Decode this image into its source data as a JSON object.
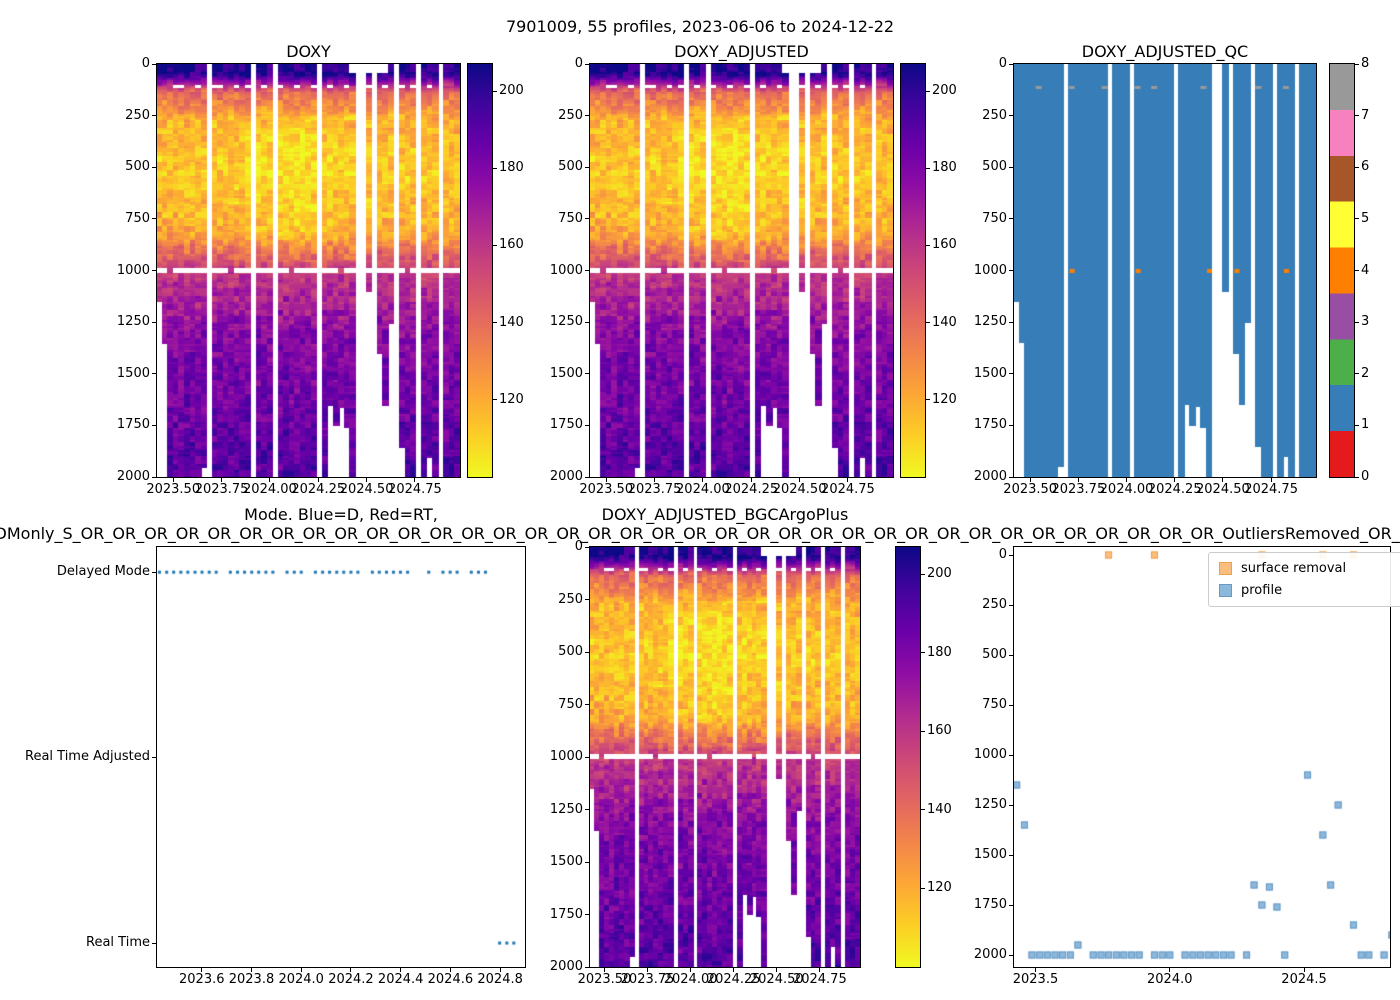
{
  "figure": {
    "suptitle": "7901009, 55 profiles, 2023-06-06 to 2024-12-22",
    "background": "#ffffff"
  },
  "titles": {
    "doxy": "DOXY",
    "doxy_adjusted": "DOXY_ADJUSTED",
    "doxy_adjusted_qc": "DOXY_ADJUSTED_QC",
    "mode_line1": "Mode. Blue=D, Red=RT,",
    "mode_line2": "Processing: F_DMonly_S_OR_OR_OR_OR_OR_OR_OR_OR_OR_OR_OR_OR_OR_OR_OR_OR_OR_OR_OR_OR_OR_OR_OR_OR_OR_OR_OR_OR_OR_OR_OR_OR_OR_OR_OR_OR_OutliersRemoved_OR_OR_OR_OR_OR",
    "bgc": "DOXY_ADJUSTED_BGCArgoPlus"
  },
  "legend": {
    "surface_removal": "surface removal",
    "profile": "profile"
  },
  "depth_ticks": [
    0,
    250,
    500,
    750,
    1000,
    1250,
    1500,
    1750,
    2000
  ],
  "colors": {
    "plasma": [
      "#0d0887",
      "#41049d",
      "#6a00a8",
      "#8f0da4",
      "#b12a90",
      "#cc4778",
      "#e16462",
      "#f2844b",
      "#fca636",
      "#fcce25",
      "#f0f921"
    ],
    "qc_palette": [
      "#e41a1c",
      "#377eb8",
      "#4daf4a",
      "#984ea3",
      "#ff7f00",
      "#ffff33",
      "#a65628",
      "#f781bf",
      "#999999"
    ],
    "mode_dot": "#1f77b4",
    "marker_profile_fill": "#8cb8dc",
    "marker_profile_edge": "#6699c4",
    "marker_surface_fill": "#fcbe7e",
    "marker_surface_edge": "#eda14f"
  },
  "chart_data": [
    {
      "id": "doxy",
      "type": "heatmap",
      "title": "DOXY",
      "x_range": [
        2023.416,
        2024.983
      ],
      "y_range": [
        0,
        2000
      ],
      "x_tick_values": [
        2023.5,
        2023.75,
        2024.0,
        2024.25,
        2024.5,
        2024.75
      ],
      "x_ticks": [
        "2023.50",
        "2023.75",
        "2024.00",
        "2024.25",
        "2024.50",
        "2024.75"
      ],
      "column_half_width": 0.01426,
      "colorbar": {
        "vmin": 100,
        "vmax": 207,
        "ticks": [
          200,
          180,
          160,
          140,
          120
        ]
      },
      "value_bands": [
        [
          0,
          203
        ],
        [
          45,
          201
        ],
        [
          130,
          142
        ],
        [
          260,
          119
        ],
        [
          520,
          112
        ],
        [
          800,
          121
        ],
        [
          1000,
          157
        ],
        [
          1300,
          178
        ],
        [
          2000,
          191
        ]
      ],
      "noise_amp": 9,
      "mask_1000m_skip": [
        2,
        13,
        24,
        33,
        45
      ],
      "surface_mask_profiles": [
        3,
        4,
        7,
        10,
        11,
        14,
        16,
        19,
        22,
        25,
        28,
        31,
        34,
        38,
        41,
        44,
        46,
        49
      ],
      "top_gap_profiles": [
        35,
        38,
        40,
        41
      ]
    },
    {
      "id": "doxy_adjusted",
      "type": "heatmap",
      "title": "DOXY_ADJUSTED",
      "same_data_as": "doxy"
    },
    {
      "id": "doxy_adjusted_qc",
      "type": "heatmap",
      "title": "DOXY_ADJUSTED_QC",
      "x_range": [
        2023.416,
        2024.983
      ],
      "y_range": [
        0,
        2000
      ],
      "x_tick_values": [
        2023.5,
        2023.75,
        2024.0,
        2024.25,
        2024.5,
        2024.75
      ],
      "x_ticks": [
        "2023.50",
        "2023.75",
        "2024.00",
        "2024.25",
        "2024.50",
        "2024.75"
      ],
      "column_half_width": 0.01426,
      "colorbar": {
        "ticks": [
          0,
          1,
          2,
          3,
          4,
          5,
          6,
          7,
          8
        ]
      },
      "dominant_flag": 1,
      "flag4_profiles": [
        10,
        22,
        35,
        40,
        49
      ],
      "flag4_depth": 1000,
      "flag8_profiles": [
        4,
        10,
        16,
        22,
        25,
        34,
        44,
        49
      ],
      "flag8_depth": 110
    },
    {
      "id": "mode",
      "type": "scatter",
      "title": "Mode. Blue=D, Red=RT,",
      "categories": [
        "Delayed Mode",
        "Real Time Adjusted",
        "Real Time"
      ],
      "row_fractions": [
        0.06,
        0.5,
        0.943
      ],
      "x_range": [
        2023.42,
        2024.9
      ],
      "x_tick_values": [
        2023.6,
        2023.8,
        2024.0,
        2024.2,
        2024.4,
        2024.6,
        2024.8
      ],
      "x_ticks": [
        "2023.6",
        "2023.8",
        "2024.0",
        "2024.2",
        "2024.4",
        "2024.6",
        "2024.8"
      ],
      "modes_from": "float_profiles"
    },
    {
      "id": "bgc",
      "type": "heatmap",
      "title": "DOXY_ADJUSTED_BGCArgoPlus",
      "same_data_as": "doxy"
    },
    {
      "id": "depth_scatter",
      "type": "scatter",
      "x_range": [
        2023.42,
        2024.82
      ],
      "y_range_padded": [
        -40,
        2060
      ],
      "x_tick_values": [
        2023.5,
        2024.0,
        2024.5
      ],
      "x_ticks": [
        "2023.5",
        "2024.0",
        "2024.5"
      ],
      "legend": [
        "surface removal",
        "profile"
      ],
      "points_from": "float_profiles",
      "surface_removal_profiles": [
        12,
        18,
        32,
        40,
        44
      ]
    }
  ],
  "float_profiles": [
    {
      "t": 2023.43,
      "depth": 1150,
      "mode": "D"
    },
    {
      "t": 2023.459,
      "depth": 1350,
      "mode": "D"
    },
    {
      "t": 2023.487,
      "depth": 2000,
      "mode": "D"
    },
    {
      "t": 2023.516,
      "depth": 2000,
      "mode": "D"
    },
    {
      "t": 2023.544,
      "depth": 2000,
      "mode": "D"
    },
    {
      "t": 2023.573,
      "depth": 2000,
      "mode": "D"
    },
    {
      "t": 2023.601,
      "depth": 2000,
      "mode": "D"
    },
    {
      "t": 2023.63,
      "depth": 2000,
      "mode": "D"
    },
    {
      "t": 2023.658,
      "depth": 1950,
      "mode": "D"
    },
    {
      "t": 2023.687,
      "missing": true
    },
    {
      "t": 2023.715,
      "depth": 2000,
      "mode": "D"
    },
    {
      "t": 2023.744,
      "depth": 2000,
      "mode": "D"
    },
    {
      "t": 2023.772,
      "depth": 2000,
      "mode": "D"
    },
    {
      "t": 2023.801,
      "depth": 2000,
      "mode": "D"
    },
    {
      "t": 2023.829,
      "depth": 2000,
      "mode": "D"
    },
    {
      "t": 2023.858,
      "depth": 2000,
      "mode": "D"
    },
    {
      "t": 2023.886,
      "depth": 2000,
      "mode": "D"
    },
    {
      "t": 2023.915,
      "missing": true
    },
    {
      "t": 2023.943,
      "depth": 2000,
      "mode": "D"
    },
    {
      "t": 2023.972,
      "depth": 2000,
      "mode": "D"
    },
    {
      "t": 2024.0,
      "depth": 2000,
      "mode": "D"
    },
    {
      "t": 2024.029,
      "missing": true
    },
    {
      "t": 2024.057,
      "depth": 2000,
      "mode": "D"
    },
    {
      "t": 2024.086,
      "depth": 2000,
      "mode": "D"
    },
    {
      "t": 2024.114,
      "depth": 2000,
      "mode": "D"
    },
    {
      "t": 2024.143,
      "depth": 2000,
      "mode": "D"
    },
    {
      "t": 2024.171,
      "depth": 2000,
      "mode": "D"
    },
    {
      "t": 2024.2,
      "depth": 2000,
      "mode": "D"
    },
    {
      "t": 2024.228,
      "depth": 2000,
      "mode": "D"
    },
    {
      "t": 2024.257,
      "missing": true
    },
    {
      "t": 2024.286,
      "depth": 2000,
      "mode": "D"
    },
    {
      "t": 2024.314,
      "depth": 1650,
      "mode": "D"
    },
    {
      "t": 2024.343,
      "depth": 1750,
      "mode": "D"
    },
    {
      "t": 2024.371,
      "depth": 1660,
      "mode": "D"
    },
    {
      "t": 2024.399,
      "depth": 1760,
      "mode": "D"
    },
    {
      "t": 2024.428,
      "depth": 2000,
      "mode": "D"
    },
    {
      "t": 2024.456,
      "missing": true
    },
    {
      "t": 2024.485,
      "missing": true
    },
    {
      "t": 2024.513,
      "depth": 1100,
      "mode": "D"
    },
    {
      "t": 2024.542,
      "missing": true
    },
    {
      "t": 2024.57,
      "depth": 1400,
      "mode": "D"
    },
    {
      "t": 2024.599,
      "depth": 1650,
      "mode": "D"
    },
    {
      "t": 2024.627,
      "depth": 1250,
      "mode": "D"
    },
    {
      "t": 2024.656,
      "missing": true
    },
    {
      "t": 2024.684,
      "depth": 1850,
      "mode": "D"
    },
    {
      "t": 2024.713,
      "depth": 2000,
      "mode": "D"
    },
    {
      "t": 2024.741,
      "depth": 2000,
      "mode": "D"
    },
    {
      "t": 2024.77,
      "missing": true
    },
    {
      "t": 2024.798,
      "depth": 2000,
      "mode": "R"
    },
    {
      "t": 2024.827,
      "depth": 1900,
      "mode": "R"
    },
    {
      "t": 2024.855,
      "depth": 2000,
      "mode": "R"
    },
    {
      "t": 2024.884,
      "missing": true
    },
    {
      "t": 2024.912,
      "depth": 2000,
      "mode": "R"
    },
    {
      "t": 2024.941,
      "depth": 2000,
      "mode": "R"
    },
    {
      "t": 2024.969,
      "depth": 2000,
      "mode": "R"
    }
  ]
}
